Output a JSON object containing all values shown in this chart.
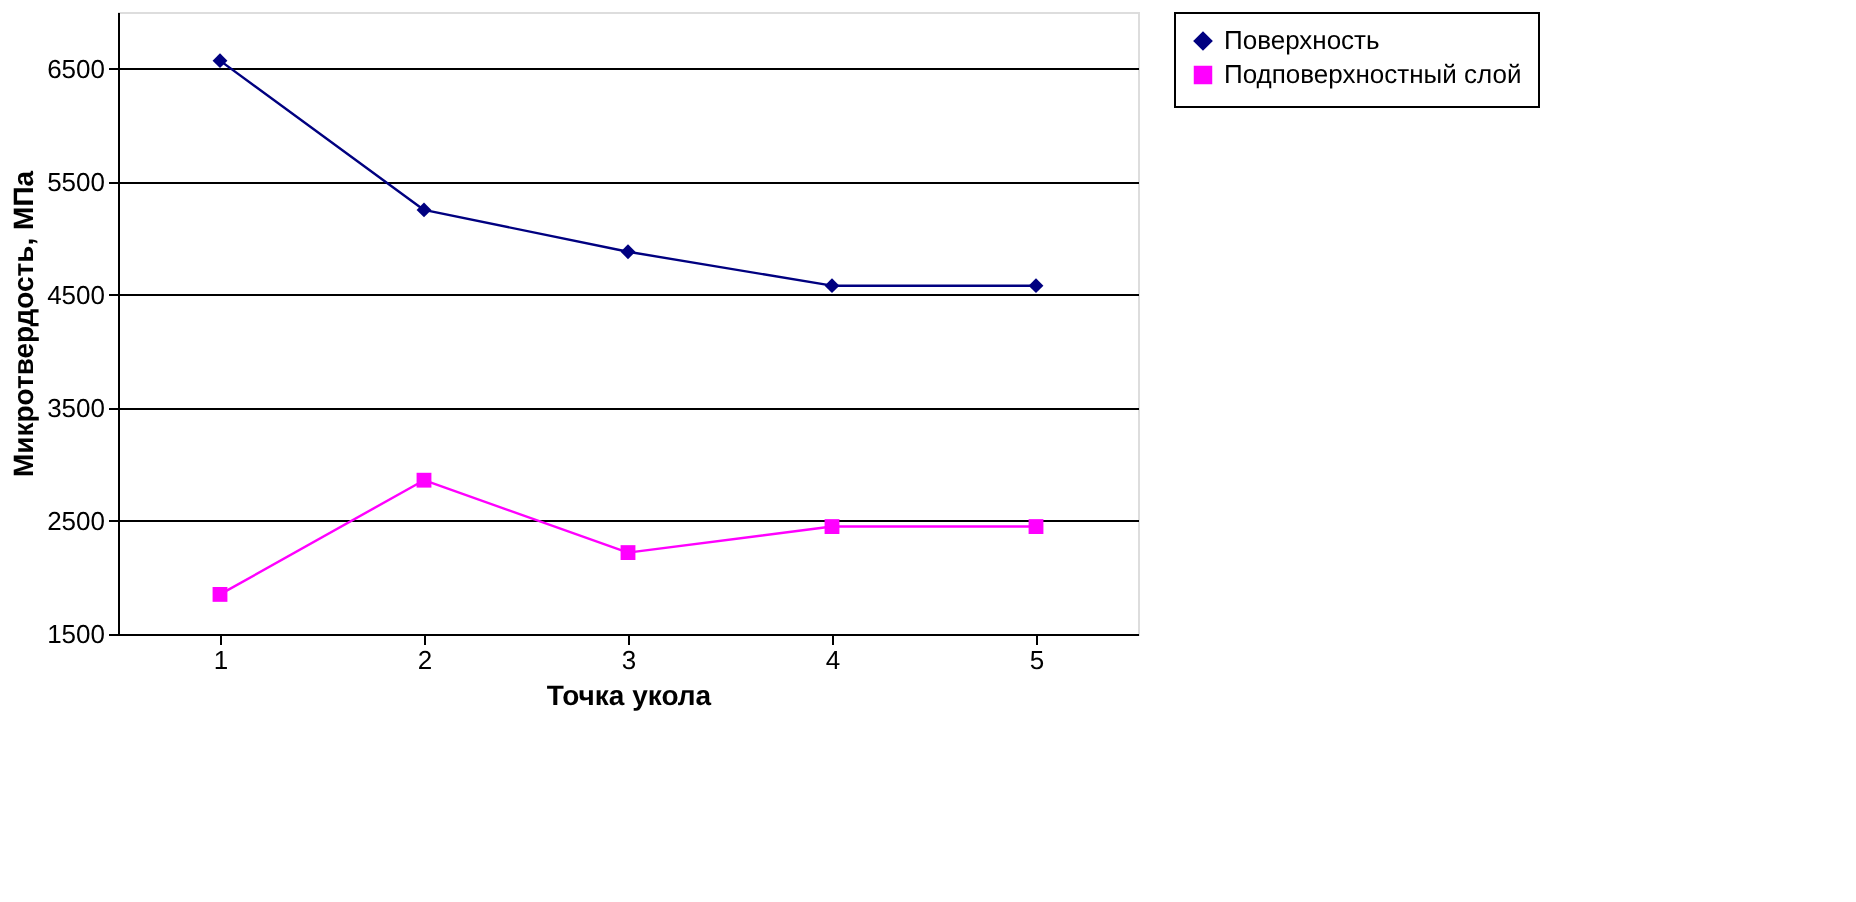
{
  "chart_data": {
    "type": "line",
    "xlabel": "Точка укола",
    "ylabel": "Микротвердость, МПа",
    "categories": [
      "1",
      "2",
      "3",
      "4",
      "5"
    ],
    "series": [
      {
        "name": "Поверхность",
        "color": "#000080",
        "marker": "diamond",
        "values": [
          6570,
          5250,
          4880,
          4580,
          4580
        ]
      },
      {
        "name": "Подповерхностный слой",
        "color": "#ff00ff",
        "marker": "square",
        "values": [
          1850,
          2860,
          2220,
          2450,
          2450
        ]
      }
    ],
    "ylim": [
      1500,
      7000
    ],
    "yticks": [
      1500,
      2500,
      3500,
      4500,
      5500,
      6500
    ],
    "grid": "y",
    "legend": "right",
    "line_style": "solid"
  }
}
